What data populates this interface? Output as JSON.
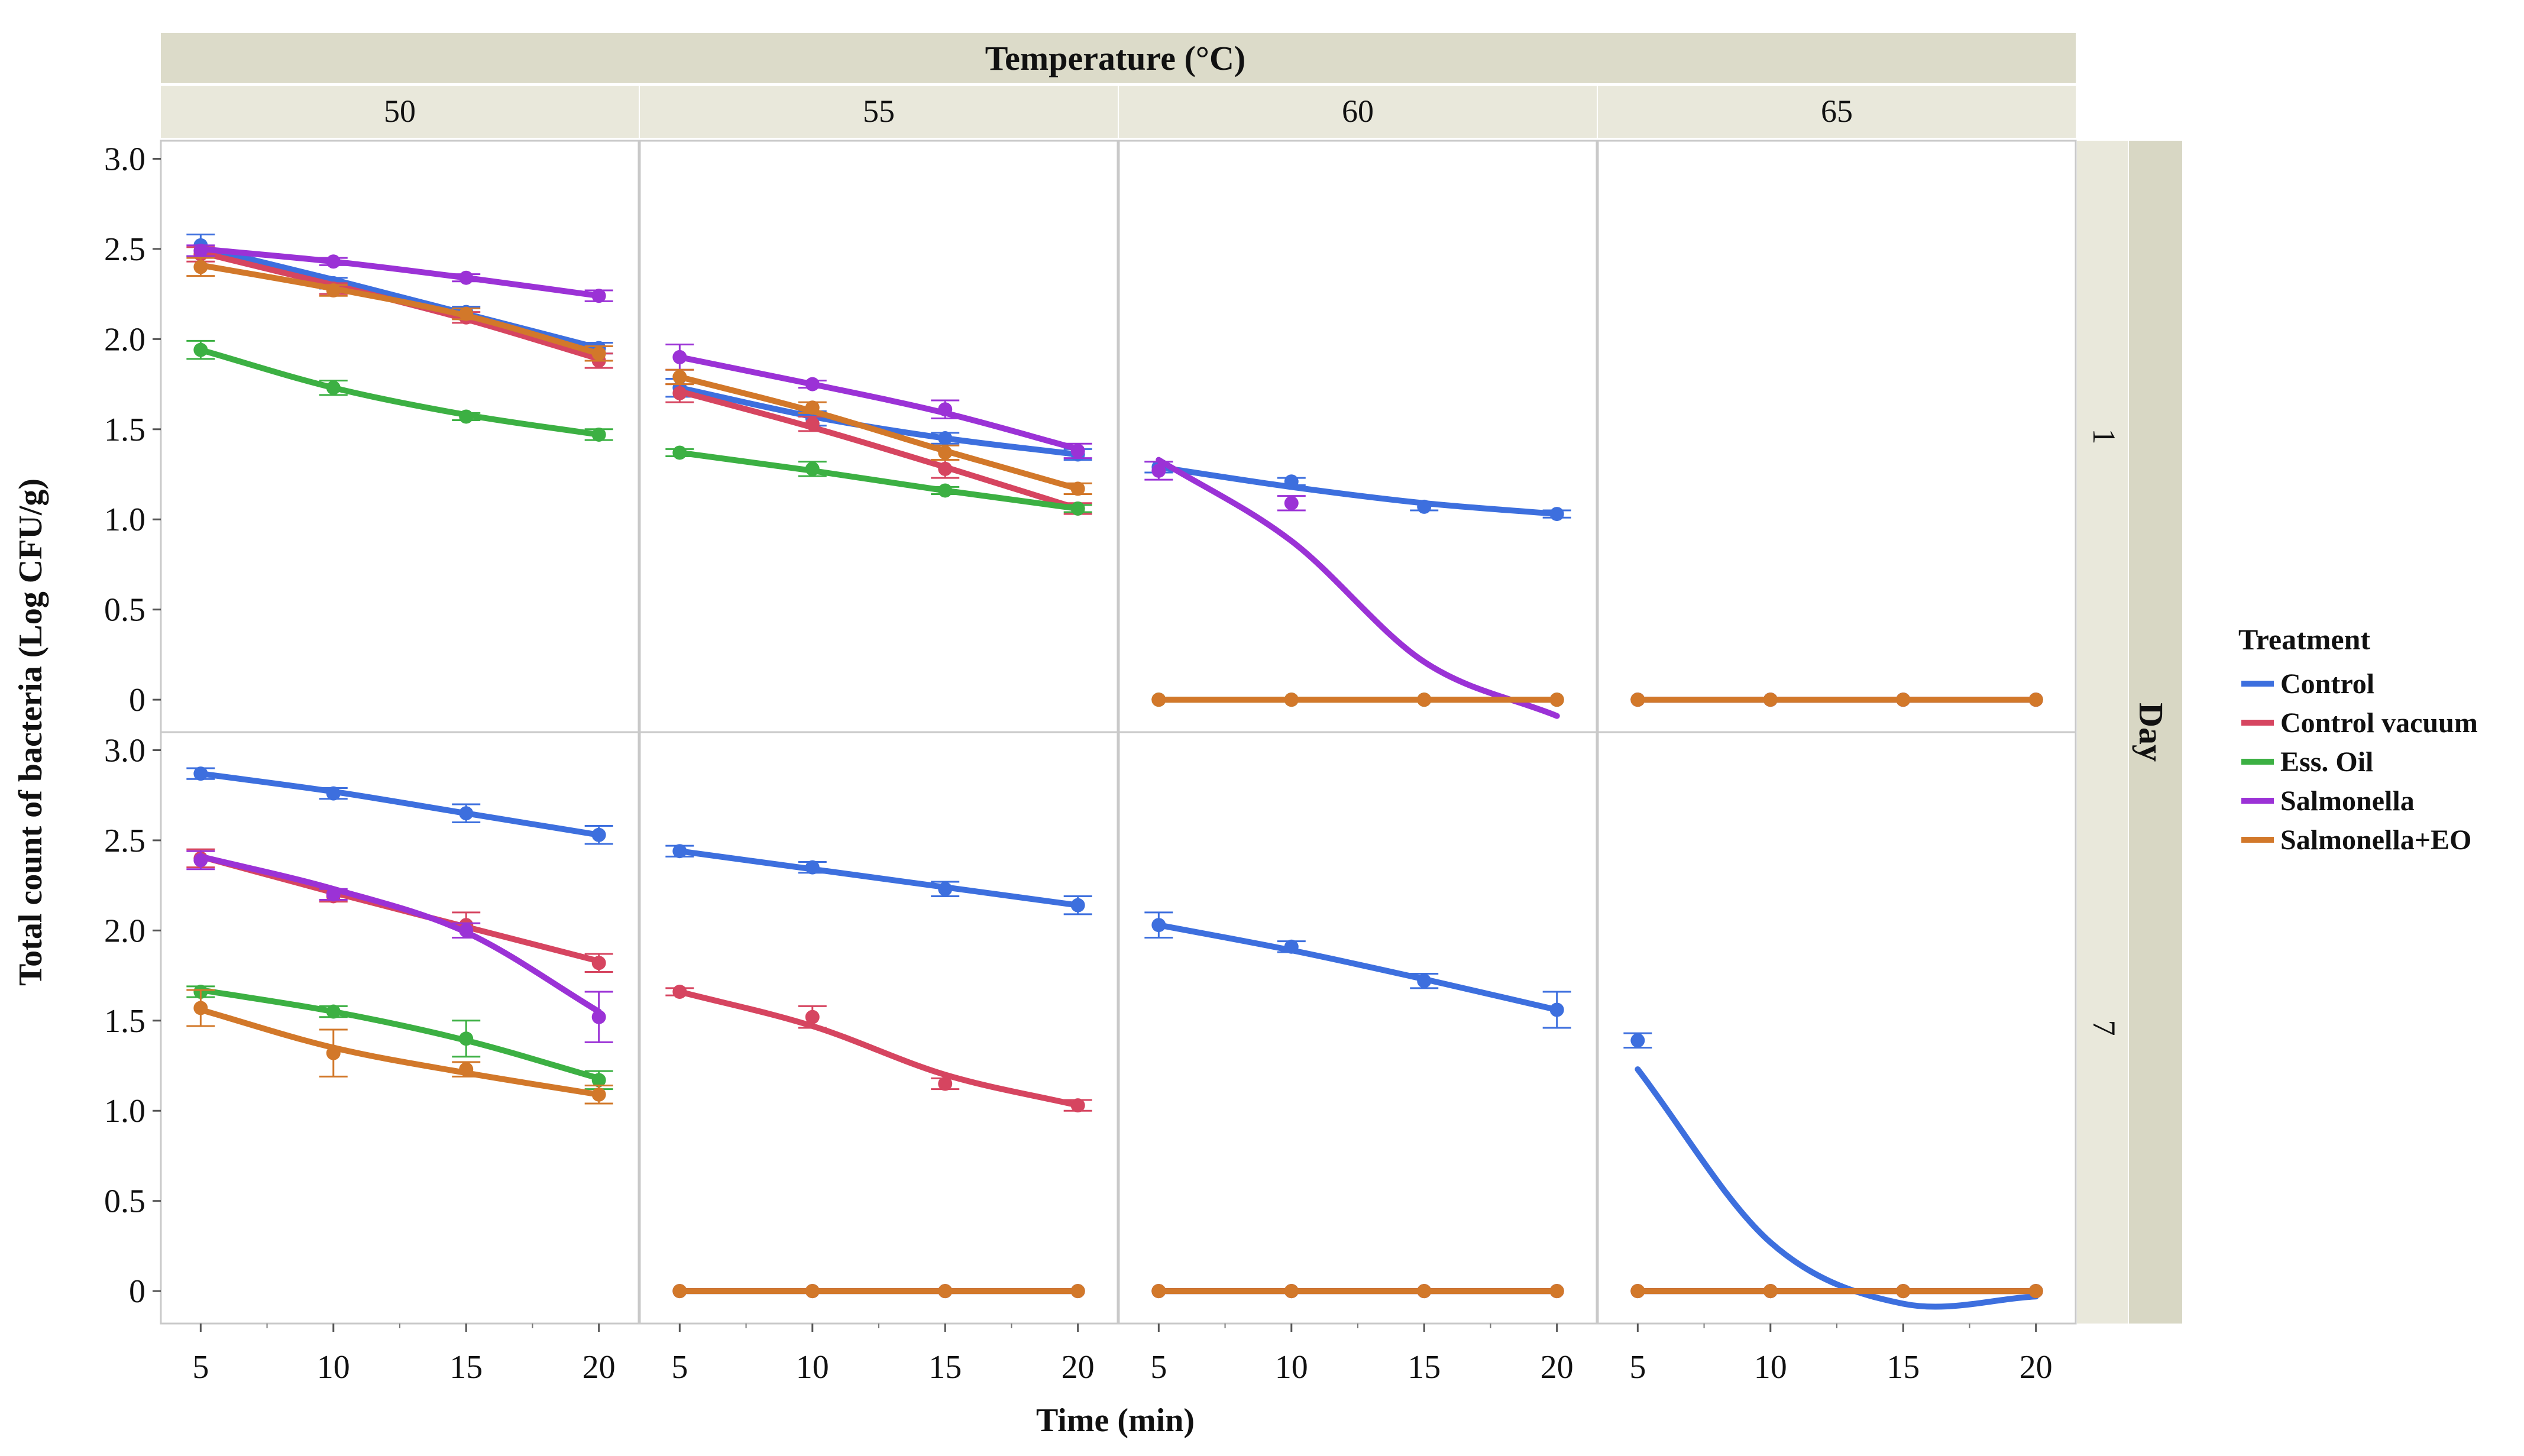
{
  "chart_data": {
    "type": "line",
    "facet_title": "Temperature (°C)",
    "row_facet_title": "Day",
    "ylabel": "Total count of bacteria (Log CFU/g)",
    "xlabel": "Time (min)",
    "temperatures": [
      "50",
      "55",
      "60",
      "65"
    ],
    "days": [
      "1",
      "7"
    ],
    "x": [
      5,
      10,
      15,
      20
    ],
    "x_tick_labels": [
      "5",
      "10",
      "15",
      "20"
    ],
    "xlim": [
      3.5,
      21.5
    ],
    "ylim": [
      -0.18,
      3.1
    ],
    "y_ticks": [
      0,
      0.5,
      1.0,
      1.5,
      2.0,
      2.5,
      3.0
    ],
    "y_tick_labels": [
      "0",
      "0.5",
      "1.0",
      "1.5",
      "2.0",
      "2.5",
      "3.0"
    ],
    "legend": {
      "title": "Treatment",
      "placement": "right",
      "entries": [
        "Control",
        "Control vacuum",
        "Ess. Oil",
        "Salmonella",
        "Salmonella+EO"
      ]
    },
    "series_colors": {
      "Control": "#3d6fde",
      "Control vacuum": "#d64560",
      "Ess. Oil": "#3cb043",
      "Salmonella": "#9b32d6",
      "Salmonella+EO": "#d2782a"
    },
    "panels": [
      {
        "day": "1",
        "temperature": "50",
        "series": [
          {
            "name": "Control",
            "values": [
              2.52,
              2.31,
              2.15,
              1.95
            ],
            "fit": [
              2.51,
              2.33,
              2.14,
              1.95
            ],
            "err": [
              0.06,
              0.03,
              0.03,
              0.03
            ]
          },
          {
            "name": "Control vacuum",
            "values": [
              2.47,
              2.28,
              2.12,
              1.88
            ],
            "fit": [
              2.48,
              2.3,
              2.11,
              1.89
            ],
            "err": [
              0.04,
              0.03,
              0.03,
              0.04
            ]
          },
          {
            "name": "Ess. Oil",
            "values": [
              1.94,
              1.73,
              1.57,
              1.47
            ],
            "fit": [
              1.94,
              1.73,
              1.58,
              1.47
            ],
            "err": [
              0.05,
              0.04,
              0.02,
              0.03
            ]
          },
          {
            "name": "Salmonella",
            "values": [
              2.49,
              2.43,
              2.34,
              2.24
            ],
            "fit": [
              2.5,
              2.43,
              2.34,
              2.24
            ],
            "err": [
              0.03,
              0.02,
              0.02,
              0.03
            ]
          },
          {
            "name": "Salmonella+EO",
            "values": [
              2.4,
              2.27,
              2.14,
              1.92
            ],
            "fit": [
              2.41,
              2.28,
              2.13,
              1.92
            ],
            "err": [
              0.05,
              0.03,
              0.03,
              0.04
            ]
          }
        ]
      },
      {
        "day": "1",
        "temperature": "55",
        "series": [
          {
            "name": "Control",
            "values": [
              1.73,
              1.56,
              1.45,
              1.36
            ],
            "fit": [
              1.73,
              1.57,
              1.45,
              1.36
            ],
            "err": [
              0.05,
              0.04,
              0.03,
              0.03
            ]
          },
          {
            "name": "Control vacuum",
            "values": [
              1.7,
              1.53,
              1.28,
              1.06
            ],
            "fit": [
              1.71,
              1.51,
              1.29,
              1.06
            ],
            "err": [
              0.05,
              0.04,
              0.05,
              0.03
            ]
          },
          {
            "name": "Ess. Oil",
            "values": [
              1.37,
              1.28,
              1.16,
              1.06
            ],
            "fit": [
              1.37,
              1.27,
              1.16,
              1.06
            ],
            "err": [
              0.02,
              0.04,
              0.02,
              0.02
            ]
          },
          {
            "name": "Salmonella",
            "values": [
              1.9,
              1.75,
              1.61,
              1.38
            ],
            "fit": [
              1.9,
              1.75,
              1.59,
              1.39
            ],
            "err": [
              0.07,
              0.02,
              0.05,
              0.04
            ]
          },
          {
            "name": "Salmonella+EO",
            "values": [
              1.79,
              1.62,
              1.37,
              1.17
            ],
            "fit": [
              1.79,
              1.6,
              1.38,
              1.17
            ],
            "err": [
              0.04,
              0.03,
              0.04,
              0.03
            ]
          }
        ]
      },
      {
        "day": "1",
        "temperature": "60",
        "series": [
          {
            "name": "Control",
            "values": [
              1.29,
              1.21,
              1.07,
              1.03
            ],
            "fit": [
              1.29,
              1.18,
              1.09,
              1.03
            ],
            "err": [
              0.03,
              0.02,
              0.02,
              0.02
            ]
          },
          {
            "name": "Control vacuum",
            "values": [
              0,
              0,
              0,
              0
            ],
            "fit": [
              0,
              0,
              0,
              0
            ],
            "err": [
              0,
              0,
              0,
              0
            ]
          },
          {
            "name": "Ess. Oil",
            "values": [
              0,
              0,
              0,
              0
            ],
            "fit": [
              0,
              0,
              0,
              0
            ],
            "err": [
              0,
              0,
              0,
              0
            ]
          },
          {
            "name": "Salmonella",
            "values": [
              1.27,
              1.09,
              null,
              null
            ],
            "fit": [
              1.33,
              0.88,
              0.21,
              -0.09
            ],
            "err": [
              0.05,
              0.04,
              0,
              0
            ]
          },
          {
            "name": "Salmonella+EO",
            "values": [
              0,
              0,
              0,
              0
            ],
            "fit": [
              0,
              0,
              0,
              0
            ],
            "err": [
              0,
              0,
              0,
              0
            ]
          }
        ]
      },
      {
        "day": "1",
        "temperature": "65",
        "series": [
          {
            "name": "Control",
            "values": [
              0,
              0,
              0,
              0
            ],
            "fit": [
              0,
              0,
              0,
              0
            ],
            "err": [
              0,
              0,
              0,
              0
            ]
          },
          {
            "name": "Control vacuum",
            "values": [
              0,
              0,
              0,
              0
            ],
            "fit": [
              0,
              0,
              0,
              0
            ],
            "err": [
              0,
              0,
              0,
              0
            ]
          },
          {
            "name": "Ess. Oil",
            "values": [
              0,
              0,
              0,
              0
            ],
            "fit": [
              0,
              0,
              0,
              0
            ],
            "err": [
              0,
              0,
              0,
              0
            ]
          },
          {
            "name": "Salmonella",
            "values": [
              0,
              0,
              0,
              0
            ],
            "fit": [
              0,
              0,
              0,
              0
            ],
            "err": [
              0,
              0,
              0,
              0
            ]
          },
          {
            "name": "Salmonella+EO",
            "values": [
              0,
              0,
              0,
              0
            ],
            "fit": [
              0,
              0,
              0,
              0
            ],
            "err": [
              0,
              0,
              0,
              0
            ]
          }
        ]
      },
      {
        "day": "7",
        "temperature": "50",
        "series": [
          {
            "name": "Control",
            "values": [
              2.87,
              2.76,
              2.65,
              2.53
            ],
            "fit": [
              2.87,
              2.77,
              2.65,
              2.53
            ],
            "err": [
              0.03,
              0.03,
              0.05,
              0.05
            ]
          },
          {
            "name": "Control vacuum",
            "values": [
              2.4,
              2.19,
              2.03,
              1.82
            ],
            "fit": [
              2.41,
              2.21,
              2.02,
              1.83
            ],
            "err": [
              0.05,
              0.03,
              0.07,
              0.05
            ]
          },
          {
            "name": "Ess. Oil",
            "values": [
              1.66,
              1.55,
              1.4,
              1.17
            ],
            "fit": [
              1.67,
              1.55,
              1.39,
              1.18
            ],
            "err": [
              0.03,
              0.03,
              0.1,
              0.05
            ]
          },
          {
            "name": "Salmonella",
            "values": [
              2.39,
              2.2,
              2.0,
              1.52
            ],
            "fit": [
              2.41,
              2.23,
              1.99,
              1.55
            ],
            "err": [
              0.05,
              0.03,
              0.04,
              0.14
            ]
          },
          {
            "name": "Salmonella+EO",
            "values": [
              1.57,
              1.32,
              1.23,
              1.09
            ],
            "fit": [
              1.56,
              1.35,
              1.21,
              1.09
            ],
            "err": [
              0.1,
              0.13,
              0.04,
              0.05
            ]
          }
        ]
      },
      {
        "day": "7",
        "temperature": "55",
        "series": [
          {
            "name": "Control",
            "values": [
              2.44,
              2.35,
              2.23,
              2.14
            ],
            "fit": [
              2.44,
              2.34,
              2.24,
              2.14
            ],
            "err": [
              0.03,
              0.03,
              0.04,
              0.05
            ]
          },
          {
            "name": "Control vacuum",
            "values": [
              1.66,
              1.52,
              1.15,
              1.03
            ],
            "fit": [
              1.66,
              1.47,
              1.2,
              1.03
            ],
            "err": [
              0.02,
              0.06,
              0.03,
              0.03
            ]
          },
          {
            "name": "Ess. Oil",
            "values": [
              0,
              0,
              0,
              0
            ],
            "fit": [
              0,
              0,
              0,
              0
            ],
            "err": [
              0,
              0,
              0,
              0
            ]
          },
          {
            "name": "Salmonella",
            "values": [
              0,
              0,
              0,
              0
            ],
            "fit": [
              0,
              0,
              0,
              0
            ],
            "err": [
              0,
              0,
              0,
              0
            ]
          },
          {
            "name": "Salmonella+EO",
            "values": [
              0,
              0,
              0,
              0
            ],
            "fit": [
              0,
              0,
              0,
              0
            ],
            "err": [
              0,
              0,
              0,
              0
            ]
          }
        ]
      },
      {
        "day": "7",
        "temperature": "60",
        "series": [
          {
            "name": "Control",
            "values": [
              2.03,
              1.91,
              1.72,
              1.56
            ],
            "fit": [
              2.03,
              1.89,
              1.73,
              1.56
            ],
            "err": [
              0.07,
              0.03,
              0.04,
              0.1
            ]
          },
          {
            "name": "Control vacuum",
            "values": [
              0,
              0,
              0,
              0
            ],
            "fit": [
              0,
              0,
              0,
              0
            ],
            "err": [
              0,
              0,
              0,
              0
            ]
          },
          {
            "name": "Ess. Oil",
            "values": [
              0,
              0,
              0,
              0
            ],
            "fit": [
              0,
              0,
              0,
              0
            ],
            "err": [
              0,
              0,
              0,
              0
            ]
          },
          {
            "name": "Salmonella",
            "values": [
              0,
              0,
              0,
              0
            ],
            "fit": [
              0,
              0,
              0,
              0
            ],
            "err": [
              0,
              0,
              0,
              0
            ]
          },
          {
            "name": "Salmonella+EO",
            "values": [
              0,
              0,
              0,
              0
            ],
            "fit": [
              0,
              0,
              0,
              0
            ],
            "err": [
              0,
              0,
              0,
              0
            ]
          }
        ]
      },
      {
        "day": "7",
        "temperature": "65",
        "series": [
          {
            "name": "Control",
            "values": [
              1.39,
              0,
              0,
              0
            ],
            "fit": [
              1.23,
              0.27,
              -0.07,
              -0.03
            ],
            "err": [
              0.04,
              0,
              0,
              0
            ]
          },
          {
            "name": "Control vacuum",
            "values": [
              0,
              0,
              0,
              0
            ],
            "fit": [
              0,
              0,
              0,
              0
            ],
            "err": [
              0,
              0,
              0,
              0
            ]
          },
          {
            "name": "Ess. Oil",
            "values": [
              0,
              0,
              0,
              0
            ],
            "fit": [
              0,
              0,
              0,
              0
            ],
            "err": [
              0,
              0,
              0,
              0
            ]
          },
          {
            "name": "Salmonella",
            "values": [
              0,
              0,
              0,
              0
            ],
            "fit": [
              0,
              0,
              0,
              0
            ],
            "err": [
              0,
              0,
              0,
              0
            ]
          },
          {
            "name": "Salmonella+EO",
            "values": [
              0,
              0,
              0,
              0
            ],
            "fit": [
              0,
              0,
              0,
              0
            ],
            "err": [
              0,
              0,
              0,
              0
            ]
          }
        ]
      }
    ]
  }
}
